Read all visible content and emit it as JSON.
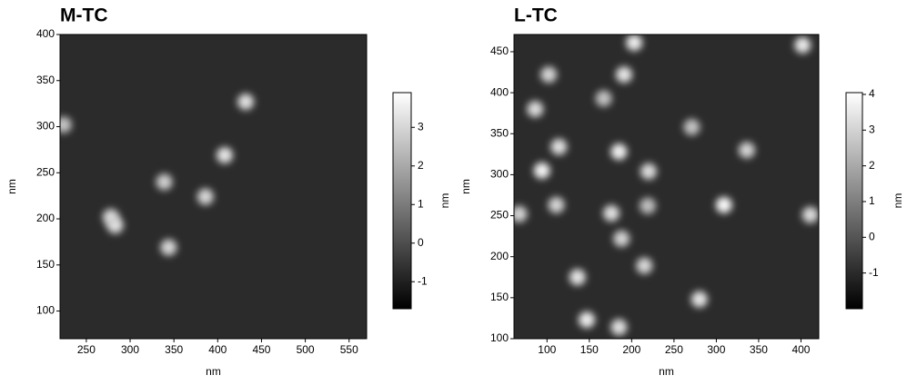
{
  "chart_data": [
    {
      "type": "image",
      "title": "M-TC",
      "xlabel": "nm",
      "ylabel": "nm",
      "xlim": [
        220,
        570
      ],
      "ylim": [
        70,
        400
      ],
      "xticks": [
        250,
        300,
        350,
        400,
        450,
        500,
        550
      ],
      "yticks": [
        100,
        150,
        200,
        250,
        300,
        350,
        400
      ],
      "colorbar": {
        "label": "nm",
        "lim": [
          -1.7,
          3.9
        ],
        "ticks": [
          -1,
          0,
          1,
          2,
          3
        ]
      },
      "features": {
        "x": [
          432,
          408,
          386,
          339,
          344,
          278,
          283,
          224
        ],
        "y": [
          327,
          269,
          224,
          240,
          169,
          202,
          193,
          302
        ],
        "values": [
          3.2,
          3.3,
          3,
          2.8,
          3,
          3,
          3.2,
          2.6
        ]
      }
    },
    {
      "type": "image",
      "title": "L-TC",
      "xlabel": "nm",
      "ylabel": "nm",
      "xlim": [
        61,
        421
      ],
      "ylim": [
        100,
        471
      ],
      "xticks": [
        100,
        150,
        200,
        250,
        300,
        350,
        400
      ],
      "yticks": [
        100,
        150,
        200,
        250,
        300,
        350,
        400,
        450
      ],
      "colorbar": {
        "label": "nm",
        "lim": [
          -2,
          4.05
        ],
        "ticks": [
          -1,
          0,
          1,
          2,
          3,
          4
        ]
      },
      "features": {
        "x": [
          203,
          402,
          102,
          191,
          86,
          167,
          114,
          185,
          220,
          94,
          111,
          176,
          219,
          309,
          67,
          411,
          188,
          215,
          136,
          147,
          185,
          280,
          336,
          271
        ],
        "y": [
          461,
          458,
          422,
          422,
          380,
          393,
          334,
          328,
          304,
          305,
          263,
          253,
          262,
          263,
          252,
          251,
          222,
          189,
          175,
          123,
          114,
          148,
          330,
          358
        ],
        "values": [
          3.6,
          3.5,
          3,
          3.4,
          3.2,
          2.6,
          3.3,
          3.7,
          3.2,
          3.8,
          3,
          3.3,
          2.5,
          3.9,
          3,
          3.2,
          3,
          3.1,
          3.4,
          3.6,
          3.3,
          3.4,
          3,
          2.6
        ]
      }
    }
  ]
}
